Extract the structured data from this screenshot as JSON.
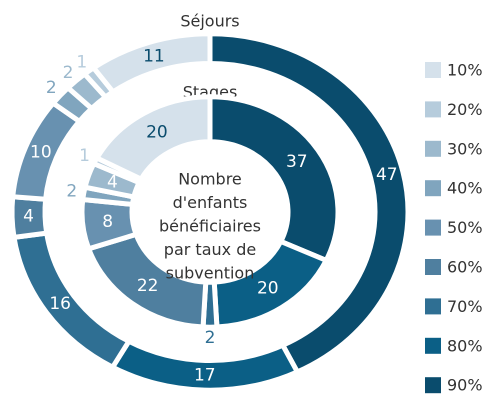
{
  "chart_data": {
    "type": "donut",
    "categories": [
      "10%",
      "20%",
      "30%",
      "40%",
      "50%",
      "60%",
      "70%",
      "80%",
      "90%"
    ],
    "colors": [
      "#d5e1eb",
      "#b6ccdc",
      "#9cb9cd",
      "#80a5be",
      "#6891b0",
      "#4f7f9f",
      "#2f6f93",
      "#0b5f86",
      "#0a4c6d"
    ],
    "series": [
      {
        "name": "Séjours",
        "values": [
          11,
          1,
          2,
          2,
          10,
          4,
          16,
          17,
          47
        ]
      },
      {
        "name": "Stages",
        "values": [
          20,
          1,
          4,
          2,
          8,
          22,
          2,
          20,
          37
        ]
      }
    ],
    "center_text": [
      "Nombre",
      "d'enfants",
      "bénéficiaires",
      "par taux de",
      "subvention"
    ]
  }
}
